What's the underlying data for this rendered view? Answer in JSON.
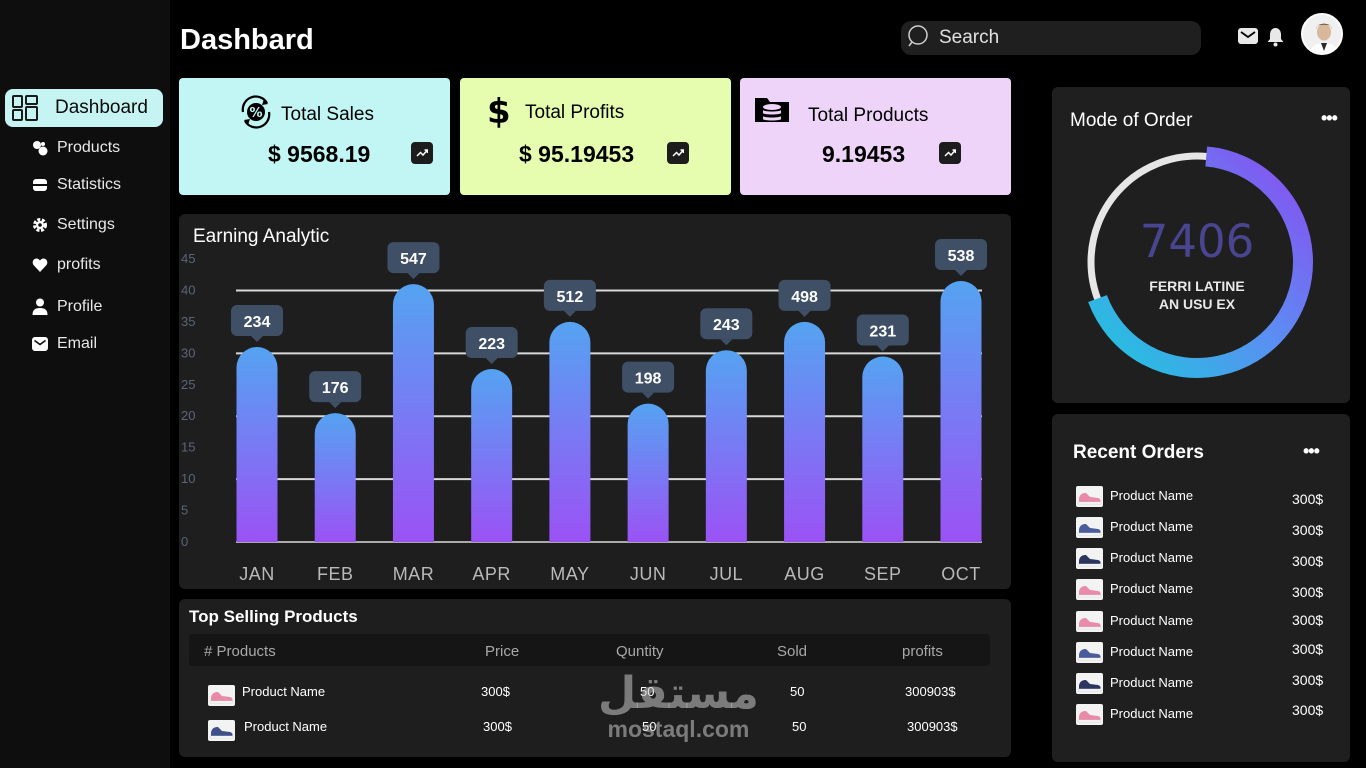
{
  "header": {
    "title": "Dashbard",
    "search_placeholder": "Search"
  },
  "sidebar": {
    "items": [
      {
        "label": "Dashboard",
        "icon": "dashboard-icon"
      },
      {
        "label": "Products",
        "icon": "products-icon"
      },
      {
        "label": "Statistics",
        "icon": "statistics-icon"
      },
      {
        "label": "Settings",
        "icon": "gear-icon"
      },
      {
        "label": "profits",
        "icon": "heart-icon"
      },
      {
        "label": "Profile",
        "icon": "user-icon"
      },
      {
        "label": "Email",
        "icon": "mail-icon"
      }
    ]
  },
  "stats": [
    {
      "label": "Total Sales",
      "value": "$ 9568.19",
      "color": "#c2f6f4"
    },
    {
      "label": "Total Profits",
      "value": "$ 95.19453",
      "color": "#e6fdb0"
    },
    {
      "label": "Total Products",
      "value": "9.19453",
      "color": "#efd4f9"
    }
  ],
  "chart_data": {
    "type": "bar",
    "title": "Earning Analytic",
    "categories": [
      "JAN",
      "FEB",
      "MAR",
      "APR",
      "MAY",
      "JUN",
      "JUL",
      "AUG",
      "SEP",
      "OCT"
    ],
    "values": [
      31,
      20.5,
      41,
      27.5,
      35,
      22,
      30.5,
      35,
      29.5,
      41.5
    ],
    "data_labels": [
      "234",
      "176",
      "547",
      "223",
      "512",
      "198",
      "243",
      "498",
      "231",
      "538"
    ],
    "yticks": [
      "45",
      "40",
      "35",
      "30",
      "25",
      "20",
      "15",
      "10",
      "5",
      "0"
    ],
    "ylim": [
      0,
      45
    ],
    "gridlines": [
      10,
      20,
      30,
      40
    ],
    "gradient": [
      "#55a3f2",
      "#9b52f5"
    ]
  },
  "mode_of_order": {
    "title": "Mode of Order",
    "value": "7406",
    "subtitle_line1": "FERRI LATINE",
    "subtitle_line2": "AN USU EX",
    "progress_fraction": 0.68
  },
  "recent_orders": {
    "title": "Recent Orders",
    "items": [
      {
        "name": "Product Name",
        "price": "300$",
        "shoe": "pink"
      },
      {
        "name": "Product Name",
        "price": "300$",
        "shoe": "blue"
      },
      {
        "name": "Product Name",
        "price": "300$",
        "shoe": "navy"
      },
      {
        "name": "Product Name",
        "price": "300$",
        "shoe": "pink"
      },
      {
        "name": "Product Name",
        "price": "300$",
        "shoe": "pink"
      },
      {
        "name": "Product Name",
        "price": "300$",
        "shoe": "blue"
      },
      {
        "name": "Product Name",
        "price": "300$",
        "shoe": "navy"
      },
      {
        "name": "Product Name",
        "price": "300$",
        "shoe": "pink"
      }
    ]
  },
  "top_selling": {
    "title": "Top Selling Products",
    "headers": [
      "# Products",
      "Price",
      "Quntity",
      "Sold",
      "profits"
    ],
    "rows": [
      {
        "name": "Product Name",
        "price": "300$",
        "qty": "50",
        "sold": "50",
        "profits": "300903$",
        "shoe": "pink"
      },
      {
        "name": "Product Name",
        "price": "300$",
        "qty": "50",
        "sold": "50",
        "profits": "300903$",
        "shoe": "blue"
      }
    ]
  },
  "watermark": {
    "arabic": "مستقل",
    "latin": "mostaql.com"
  }
}
